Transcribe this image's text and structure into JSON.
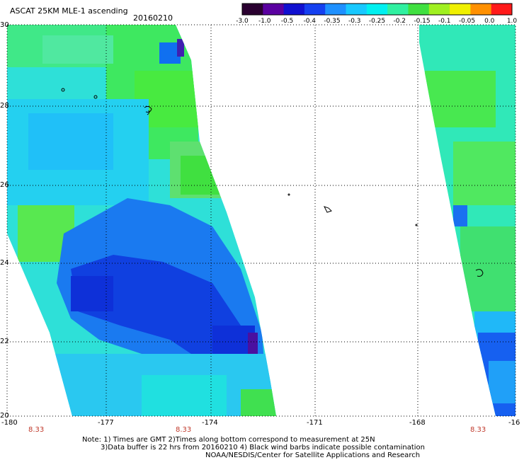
{
  "header": {
    "title": "ASCAT 25KM MLE-1 ascending",
    "date": "20160210"
  },
  "colorbar": {
    "labels": [
      "-3.0",
      "-1.0",
      "-0.5",
      "-0.4",
      "-0.35",
      "-0.3",
      "-0.25",
      "-0.2",
      "-0.15",
      "-0.1",
      "-0.05",
      "0.0",
      "1.0"
    ],
    "colors": [
      "#2a0030",
      "#5a00a0",
      "#1010d0",
      "#1540f0",
      "#1e90ff",
      "#18c8ff",
      "#00f0f0",
      "#30f0a0",
      "#40e040",
      "#a0f020",
      "#f0f000",
      "#ff9000",
      "#ff1a1a"
    ]
  },
  "map": {
    "lon_labels": [
      "-180",
      "-177",
      "-174",
      "-171",
      "-168",
      "-16"
    ],
    "lat_labels": [
      "30",
      "28",
      "26",
      "24",
      "22",
      "20"
    ],
    "time_labels": [
      "8.33",
      "8.33",
      "8.33"
    ]
  },
  "notes": {
    "line1": "Note: 1) Times are GMT 2)Times along bottom correspond to measurement at 25N",
    "line2": "3)Data buffer is 22 hrs from 20160210 4) Black wind barbs indicate possible contamination",
    "line3": "NOAA/NESDIS/Center for Satellite Applications and Research"
  }
}
